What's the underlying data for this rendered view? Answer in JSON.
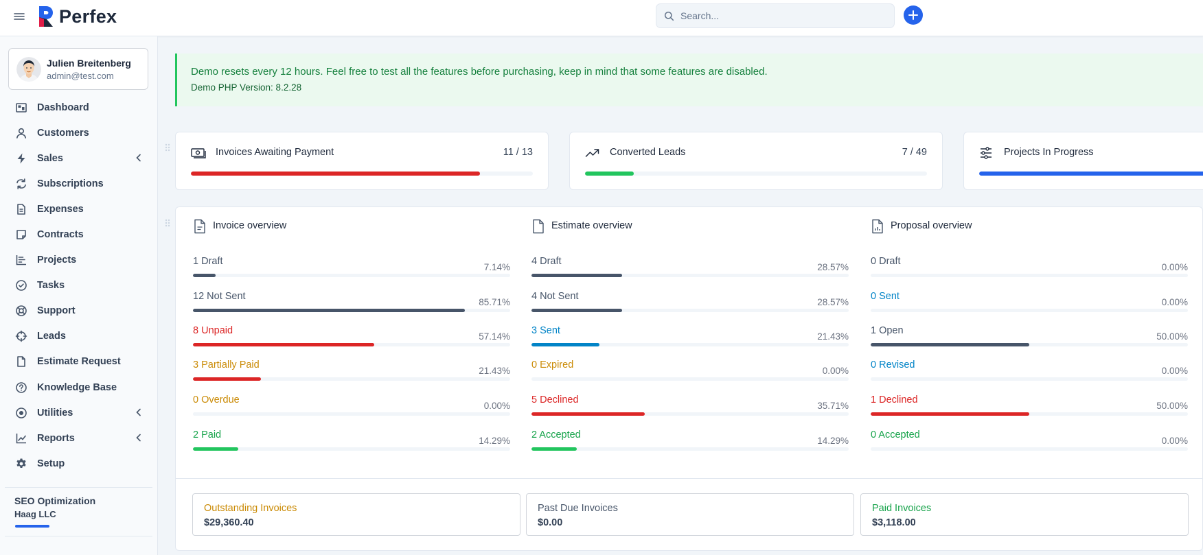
{
  "app": {
    "name": "Perfex"
  },
  "search": {
    "placeholder": "Search..."
  },
  "user": {
    "name": "Julien Breitenberg",
    "email": "admin@test.com"
  },
  "menu": [
    {
      "label": "Dashboard",
      "icon": "dashboard-icon"
    },
    {
      "label": "Customers",
      "icon": "user-icon"
    },
    {
      "label": "Sales",
      "icon": "bolt-icon",
      "expandable": true
    },
    {
      "label": "Subscriptions",
      "icon": "refresh-icon"
    },
    {
      "label": "Expenses",
      "icon": "document-icon"
    },
    {
      "label": "Contracts",
      "icon": "sticky-note-icon"
    },
    {
      "label": "Projects",
      "icon": "chart-icon"
    },
    {
      "label": "Tasks",
      "icon": "check-circle-icon"
    },
    {
      "label": "Support",
      "icon": "lifebuoy-icon"
    },
    {
      "label": "Leads",
      "icon": "crosshair-icon"
    },
    {
      "label": "Estimate Request",
      "icon": "document-icon"
    },
    {
      "label": "Knowledge Base",
      "icon": "question-circle-icon"
    },
    {
      "label": "Utilities",
      "icon": "dot-circle-icon",
      "expandable": true
    },
    {
      "label": "Reports",
      "icon": "line-chart-icon",
      "expandable": true
    },
    {
      "label": "Setup",
      "icon": "gear-icon"
    }
  ],
  "sidebar_project": {
    "name": "SEO Optimization",
    "client": "Haag LLC",
    "progress": 0.25,
    "color": "#2563eb"
  },
  "banner": {
    "message": "Demo resets every 12 hours. Feel free to test all the features before purchasing, keep in mind that some features are disabled.",
    "php_version": "Demo PHP Version: 8.2.28"
  },
  "stats": [
    {
      "title": "Invoices Awaiting Payment",
      "count": "11 / 13",
      "progress": 0.846,
      "color": "#dc2626",
      "icon": "money-icon"
    },
    {
      "title": "Converted Leads",
      "count": "7 / 49",
      "progress": 0.143,
      "color": "#22c55e",
      "icon": "trending-up-icon"
    },
    {
      "title": "Projects In Progress",
      "count": "",
      "progress": 1.0,
      "color": "#2563eb",
      "icon": "sliders-icon"
    }
  ],
  "overviews": [
    {
      "title": "Invoice overview",
      "icon": "invoice-doc-icon",
      "rows": [
        {
          "label": "1 Draft",
          "percent": "7.14%",
          "value": 7.14,
          "color": "#475569",
          "label_color": "dark"
        },
        {
          "label": "12 Not Sent",
          "percent": "85.71%",
          "value": 85.71,
          "color": "#475569",
          "label_color": "dark"
        },
        {
          "label": "8 Unpaid",
          "percent": "57.14%",
          "value": 57.14,
          "color": "#dc2626",
          "label_color": "red"
        },
        {
          "label": "3 Partially Paid",
          "percent": "21.43%",
          "value": 21.43,
          "color": "#dc2626",
          "label_color": "orange"
        },
        {
          "label": "0 Overdue",
          "percent": "0.00%",
          "value": 0,
          "color": "#ca8a04",
          "label_color": "orange"
        },
        {
          "label": "2 Paid",
          "percent": "14.29%",
          "value": 14.29,
          "color": "#22c55e",
          "label_color": "green"
        }
      ]
    },
    {
      "title": "Estimate overview",
      "icon": "document-icon",
      "rows": [
        {
          "label": "4 Draft",
          "percent": "28.57%",
          "value": 28.57,
          "color": "#475569",
          "label_color": "dark"
        },
        {
          "label": "4 Not Sent",
          "percent": "28.57%",
          "value": 28.57,
          "color": "#475569",
          "label_color": "dark"
        },
        {
          "label": "3 Sent",
          "percent": "21.43%",
          "value": 21.43,
          "color": "#0284c7",
          "label_color": "blue"
        },
        {
          "label": "0 Expired",
          "percent": "0.00%",
          "value": 0,
          "color": "#ca8a04",
          "label_color": "orange"
        },
        {
          "label": "5 Declined",
          "percent": "35.71%",
          "value": 35.71,
          "color": "#dc2626",
          "label_color": "red"
        },
        {
          "label": "2 Accepted",
          "percent": "14.29%",
          "value": 14.29,
          "color": "#22c55e",
          "label_color": "green"
        }
      ]
    },
    {
      "title": "Proposal overview",
      "icon": "chart-doc-icon",
      "rows": [
        {
          "label": "0 Draft",
          "percent": "0.00%",
          "value": 0,
          "color": "#475569",
          "label_color": "dark"
        },
        {
          "label": "0 Sent",
          "percent": "0.00%",
          "value": 0,
          "color": "#0284c7",
          "label_color": "blue"
        },
        {
          "label": "1 Open",
          "percent": "50.00%",
          "value": 50,
          "color": "#475569",
          "label_color": "dark"
        },
        {
          "label": "0 Revised",
          "percent": "0.00%",
          "value": 0,
          "color": "#0284c7",
          "label_color": "blue"
        },
        {
          "label": "1 Declined",
          "percent": "50.00%",
          "value": 50,
          "color": "#dc2626",
          "label_color": "red"
        },
        {
          "label": "0 Accepted",
          "percent": "0.00%",
          "value": 0,
          "color": "#22c55e",
          "label_color": "green"
        }
      ]
    }
  ],
  "totals": [
    {
      "label": "Outstanding Invoices",
      "value": "$29,360.40",
      "label_color": "orange"
    },
    {
      "label": "Past Due Invoices",
      "value": "$0.00",
      "label_color": "dark"
    },
    {
      "label": "Paid Invoices",
      "value": "$3,118.00",
      "label_color": "green"
    }
  ]
}
